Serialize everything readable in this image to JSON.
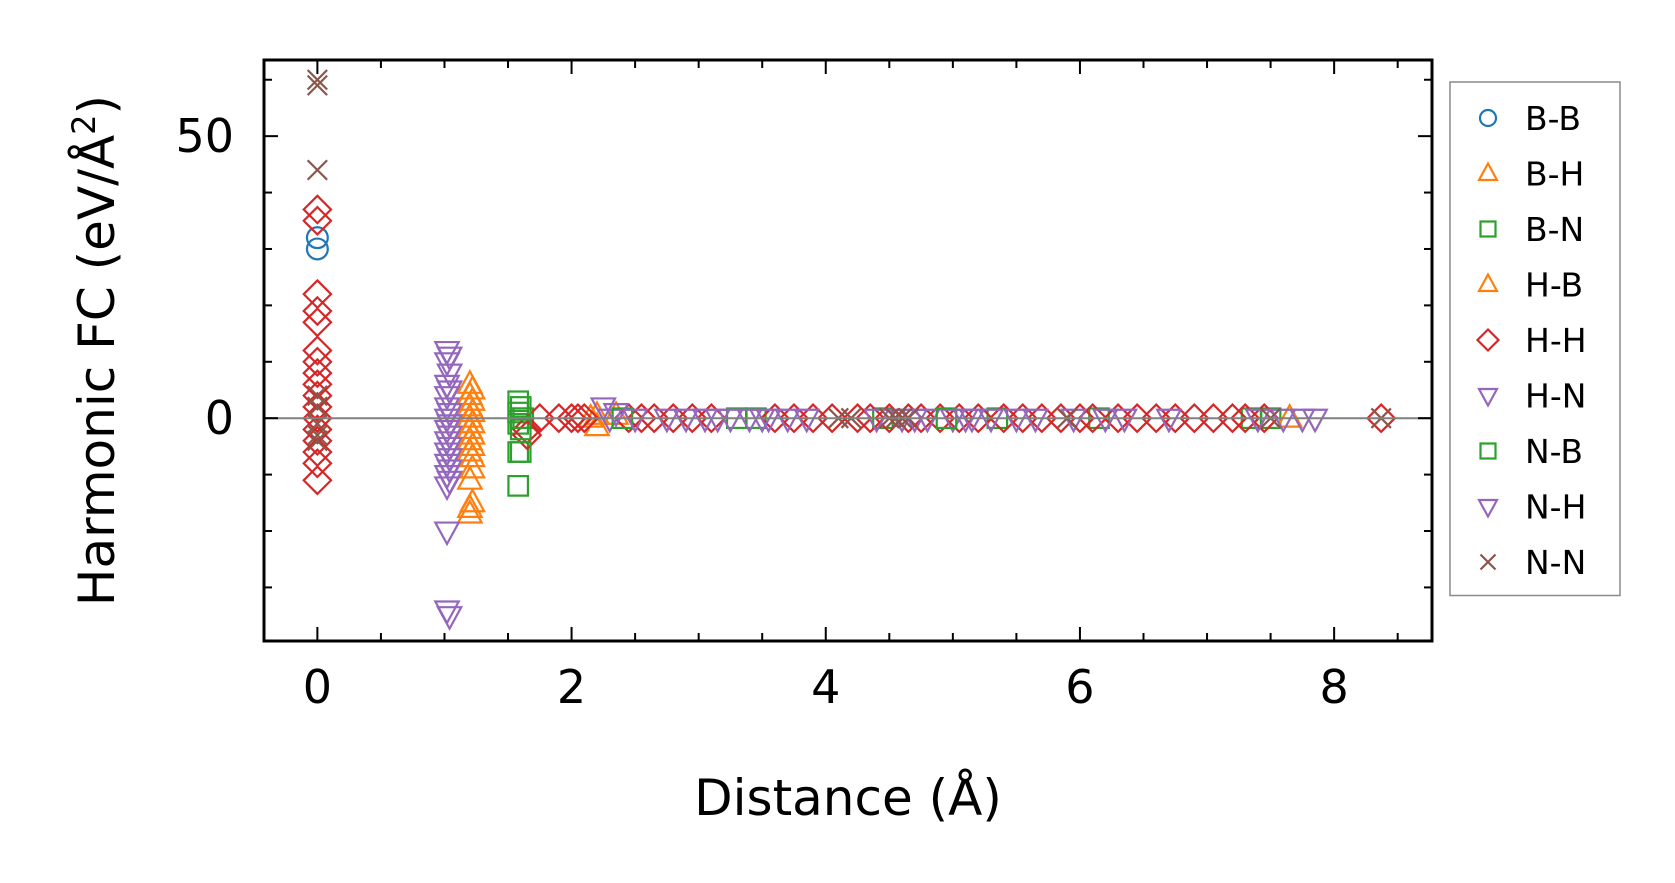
{
  "chart_data": {
    "type": "scatter",
    "title": "",
    "xlabel": "Distance (Å)",
    "ylabel_main": "Harmonic FC (eV/Å",
    "ylabel_sup": "2",
    "ylabel_close": ")",
    "xlim": [
      -0.42,
      8.77
    ],
    "ylim": [
      -39.5,
      63.5
    ],
    "xticks": [
      0,
      2,
      4,
      6,
      8
    ],
    "xtick_labels": [
      "0",
      "2",
      "4",
      "6",
      "8"
    ],
    "yticks": [
      0,
      50
    ],
    "ytick_labels": [
      "0",
      "50"
    ],
    "reference_line_y": 0,
    "legend_position": "outside-right",
    "series": [
      {
        "name": "B-B",
        "marker": "circle",
        "color": "#1f77b4",
        "points": [
          [
            0,
            32
          ],
          [
            0,
            30
          ]
        ]
      },
      {
        "name": "B-H",
        "marker": "triangle-up",
        "color": "#ff7f0e",
        "points": [
          [
            1.2,
            6
          ],
          [
            1.2,
            4
          ],
          [
            1.2,
            2
          ],
          [
            1.2,
            0
          ],
          [
            1.2,
            -2
          ],
          [
            1.2,
            -4
          ],
          [
            1.2,
            -6
          ],
          [
            1.2,
            -11
          ],
          [
            1.2,
            -16
          ],
          [
            1.2,
            -17
          ],
          [
            2.15,
            0
          ],
          [
            2.2,
            -1.5
          ],
          [
            2.35,
            0.5
          ]
        ]
      },
      {
        "name": "B-N",
        "marker": "square",
        "color": "#2ca02c",
        "points": [
          [
            1.58,
            3
          ],
          [
            1.58,
            1
          ],
          [
            1.58,
            -1
          ],
          [
            1.58,
            -6
          ],
          [
            1.58,
            -12
          ],
          [
            1.62,
            0
          ],
          [
            3.3,
            0
          ],
          [
            3.45,
            0
          ],
          [
            4.45,
            0
          ],
          [
            5.35,
            0
          ],
          [
            6.15,
            0
          ],
          [
            7.35,
            0
          ],
          [
            7.5,
            0
          ]
        ]
      },
      {
        "name": "H-B",
        "marker": "triangle-up",
        "color": "#ff7f0e",
        "points": [
          [
            1.22,
            5
          ],
          [
            1.22,
            3
          ],
          [
            1.22,
            1
          ],
          [
            1.22,
            -1
          ],
          [
            1.22,
            -3
          ],
          [
            1.22,
            -5
          ],
          [
            1.22,
            -7
          ],
          [
            1.22,
            -9
          ],
          [
            1.22,
            -15
          ],
          [
            2.2,
            0.5
          ],
          [
            7.65,
            0
          ]
        ]
      },
      {
        "name": "H-H",
        "marker": "diamond",
        "color": "#d62728",
        "points": [
          [
            0,
            37
          ],
          [
            0,
            35
          ],
          [
            0,
            22
          ],
          [
            0,
            19
          ],
          [
            0,
            17
          ],
          [
            0,
            12
          ],
          [
            0,
            10
          ],
          [
            0,
            8
          ],
          [
            0,
            6
          ],
          [
            0,
            4
          ],
          [
            0,
            2
          ],
          [
            0,
            0
          ],
          [
            0,
            -2
          ],
          [
            0,
            -4
          ],
          [
            0,
            -6
          ],
          [
            0,
            -8
          ],
          [
            0,
            -11
          ],
          [
            1.65,
            -2
          ],
          [
            1.65,
            -3
          ],
          [
            1.75,
            0
          ],
          [
            1.9,
            0
          ],
          [
            2.0,
            0
          ],
          [
            2.05,
            0
          ],
          [
            2.1,
            0
          ],
          [
            2.45,
            0
          ],
          [
            2.55,
            0
          ],
          [
            2.65,
            0
          ],
          [
            2.8,
            0
          ],
          [
            2.95,
            0
          ],
          [
            3.1,
            0
          ],
          [
            3.6,
            0
          ],
          [
            3.75,
            0
          ],
          [
            3.9,
            0
          ],
          [
            4.05,
            0
          ],
          [
            4.25,
            0
          ],
          [
            4.35,
            0
          ],
          [
            4.5,
            0
          ],
          [
            4.65,
            0
          ],
          [
            4.75,
            0
          ],
          [
            4.9,
            0
          ],
          [
            5.05,
            0
          ],
          [
            5.2,
            0
          ],
          [
            5.4,
            0
          ],
          [
            5.55,
            0
          ],
          [
            5.7,
            0
          ],
          [
            5.85,
            0
          ],
          [
            6.0,
            0
          ],
          [
            6.1,
            0
          ],
          [
            6.3,
            0
          ],
          [
            6.45,
            0
          ],
          [
            6.6,
            0
          ],
          [
            6.75,
            0
          ],
          [
            6.9,
            0
          ],
          [
            7.05,
            0
          ],
          [
            7.2,
            0
          ],
          [
            7.3,
            0
          ],
          [
            7.45,
            0
          ],
          [
            8.37,
            0
          ]
        ]
      },
      {
        "name": "H-N",
        "marker": "triangle-down",
        "color": "#9467bd",
        "points": [
          [
            1.02,
            12
          ],
          [
            1.02,
            10
          ],
          [
            1.02,
            6
          ],
          [
            1.02,
            4
          ],
          [
            1.02,
            2
          ],
          [
            1.02,
            0
          ],
          [
            1.02,
            -2
          ],
          [
            1.02,
            -4
          ],
          [
            1.02,
            -6
          ],
          [
            1.02,
            -8
          ],
          [
            1.02,
            -10
          ],
          [
            1.02,
            -12
          ],
          [
            1.02,
            -20
          ],
          [
            1.02,
            -34
          ],
          [
            2.25,
            2
          ],
          [
            2.3,
            0
          ],
          [
            2.75,
            0
          ],
          [
            2.9,
            0
          ],
          [
            3.05,
            0
          ],
          [
            3.25,
            0
          ],
          [
            3.4,
            0
          ],
          [
            3.55,
            0
          ],
          [
            3.7,
            0
          ],
          [
            3.85,
            0
          ],
          [
            4.6,
            0
          ],
          [
            4.8,
            0
          ],
          [
            5.0,
            0
          ],
          [
            5.15,
            0
          ],
          [
            5.3,
            0
          ],
          [
            5.65,
            0
          ],
          [
            6.2,
            0
          ],
          [
            6.35,
            0
          ],
          [
            7.6,
            0
          ],
          [
            7.75,
            0
          ],
          [
            7.85,
            0
          ]
        ]
      },
      {
        "name": "N-B",
        "marker": "square",
        "color": "#2ca02c",
        "points": [
          [
            1.6,
            2
          ],
          [
            1.6,
            0
          ],
          [
            1.6,
            -2
          ],
          [
            1.6,
            -6
          ],
          [
            2.4,
            0
          ],
          [
            4.95,
            0
          ]
        ]
      },
      {
        "name": "N-H",
        "marker": "triangle-down",
        "color": "#9467bd",
        "points": [
          [
            1.04,
            11
          ],
          [
            1.04,
            8
          ],
          [
            1.04,
            5
          ],
          [
            1.04,
            1
          ],
          [
            1.04,
            -1
          ],
          [
            1.04,
            -3
          ],
          [
            1.04,
            -5
          ],
          [
            1.04,
            -7
          ],
          [
            1.04,
            -9
          ],
          [
            1.04,
            -11
          ],
          [
            1.04,
            -35
          ],
          [
            2.35,
            1
          ],
          [
            2.5,
            0
          ],
          [
            3.15,
            0
          ],
          [
            3.5,
            0
          ],
          [
            4.4,
            0
          ],
          [
            4.7,
            0
          ],
          [
            5.1,
            0
          ],
          [
            5.5,
            0
          ],
          [
            5.95,
            0
          ],
          [
            6.7,
            0
          ],
          [
            7.4,
            0
          ]
        ]
      },
      {
        "name": "N-N",
        "marker": "x",
        "color": "#8c564b",
        "points": [
          [
            0,
            60
          ],
          [
            0,
            59
          ],
          [
            0,
            44
          ],
          [
            0,
            4
          ],
          [
            0,
            2
          ],
          [
            0,
            -1
          ],
          [
            0,
            -3
          ],
          [
            0,
            -4
          ],
          [
            4.1,
            0
          ],
          [
            4.2,
            0
          ],
          [
            4.5,
            0
          ],
          [
            4.55,
            0
          ],
          [
            4.6,
            0
          ],
          [
            4.65,
            0
          ],
          [
            5.9,
            0
          ],
          [
            7.5,
            0
          ],
          [
            8.37,
            0
          ]
        ]
      }
    ]
  }
}
